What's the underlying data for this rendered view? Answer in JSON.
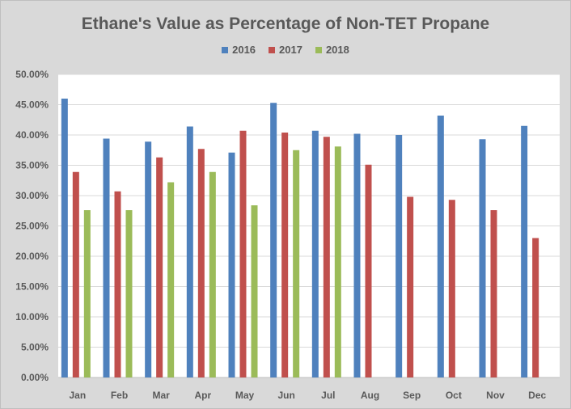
{
  "chart_data": {
    "type": "bar",
    "title": "Ethane's Value as  Percentage of Non-TET Propane",
    "categories": [
      "Jan",
      "Feb",
      "Mar",
      "Apr",
      "May",
      "Jun",
      "Jul",
      "Aug",
      "Sep",
      "Oct",
      "Nov",
      "Dec"
    ],
    "series": [
      {
        "name": "2016",
        "color": "#4f81bd",
        "values": [
          46.0,
          39.4,
          38.9,
          41.4,
          37.1,
          45.3,
          40.7,
          40.2,
          40.0,
          43.2,
          39.3,
          41.5
        ]
      },
      {
        "name": "2017",
        "color": "#c0504d",
        "values": [
          33.9,
          30.7,
          36.3,
          37.7,
          40.7,
          40.4,
          39.7,
          35.1,
          29.8,
          29.3,
          27.6,
          23.0
        ]
      },
      {
        "name": "2018",
        "color": "#9bbb59",
        "values": [
          27.6,
          27.6,
          32.2,
          33.9,
          28.4,
          37.5,
          38.1,
          null,
          null,
          null,
          null,
          null
        ]
      }
    ],
    "yticks": [
      "0.00%",
      "5.00%",
      "10.00%",
      "15.00%",
      "20.00%",
      "25.00%",
      "30.00%",
      "35.00%",
      "40.00%",
      "45.00%",
      "50.00%"
    ],
    "ylim": [
      0,
      50
    ],
    "grid": true,
    "legend_position": "top"
  }
}
